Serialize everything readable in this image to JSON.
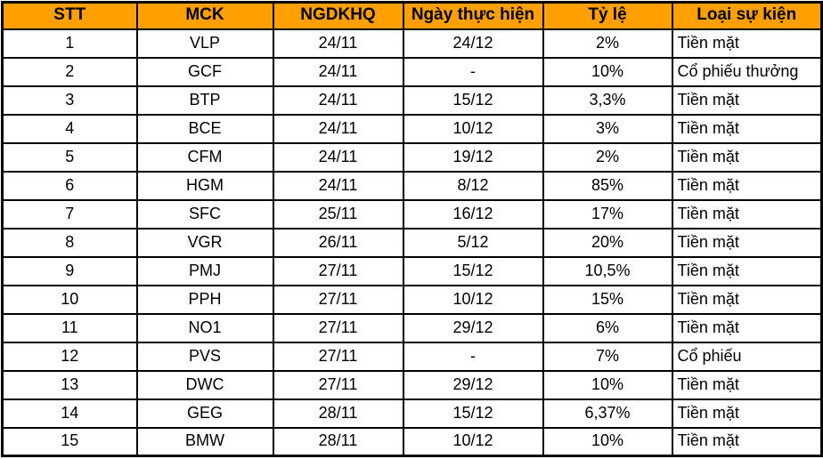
{
  "colors": {
    "header_bg": "#FFA000",
    "border": "#000000",
    "text": "#000000",
    "background": "#FFFFFF"
  },
  "chart_data": {
    "type": "table",
    "title": "",
    "columns": [
      {
        "key": "stt",
        "label": "STT"
      },
      {
        "key": "mck",
        "label": "MCK"
      },
      {
        "key": "ngdkhq",
        "label": "NGDKHQ"
      },
      {
        "key": "ngay_thuc_hien",
        "label": "Ngày thực hiện"
      },
      {
        "key": "ty_le",
        "label": "Tỷ lệ"
      },
      {
        "key": "loai_su_kien",
        "label": "Loại sự kiện"
      }
    ],
    "rows": [
      [
        "1",
        "VLP",
        "24/11",
        "24/12",
        "2%",
        "Tiền mặt"
      ],
      [
        "2",
        "GCF",
        "24/11",
        "-",
        "10%",
        "Cổ phiếu thưởng"
      ],
      [
        "3",
        "BTP",
        "24/11",
        "15/12",
        "3,3%",
        "Tiền mặt"
      ],
      [
        "4",
        "BCE",
        "24/11",
        "10/12",
        "3%",
        "Tiền mặt"
      ],
      [
        "5",
        "CFM",
        "24/11",
        "19/12",
        "2%",
        "Tiền mặt"
      ],
      [
        "6",
        "HGM",
        "24/11",
        "8/12",
        "85%",
        "Tiền mặt"
      ],
      [
        "7",
        "SFC",
        "25/11",
        "16/12",
        "17%",
        "Tiền mặt"
      ],
      [
        "8",
        "VGR",
        "26/11",
        "5/12",
        "20%",
        "Tiền mặt"
      ],
      [
        "9",
        "PMJ",
        "27/11",
        "15/12",
        "10,5%",
        "Tiền mặt"
      ],
      [
        "10",
        "PPH",
        "27/11",
        "10/12",
        "15%",
        "Tiền mặt"
      ],
      [
        "11",
        "NO1",
        "27/11",
        "29/12",
        "6%",
        "Tiền mặt"
      ],
      [
        "12",
        "PVS",
        "27/11",
        "-",
        "7%",
        "Cổ phiếu"
      ],
      [
        "13",
        "DWC",
        "27/11",
        "29/12",
        "10%",
        "Tiền mặt"
      ],
      [
        "14",
        "GEG",
        "28/11",
        "15/12",
        "6,37%",
        "Tiền mặt"
      ],
      [
        "15",
        "BMW",
        "28/11",
        "10/12",
        "10%",
        "Tiền mặt"
      ]
    ]
  }
}
